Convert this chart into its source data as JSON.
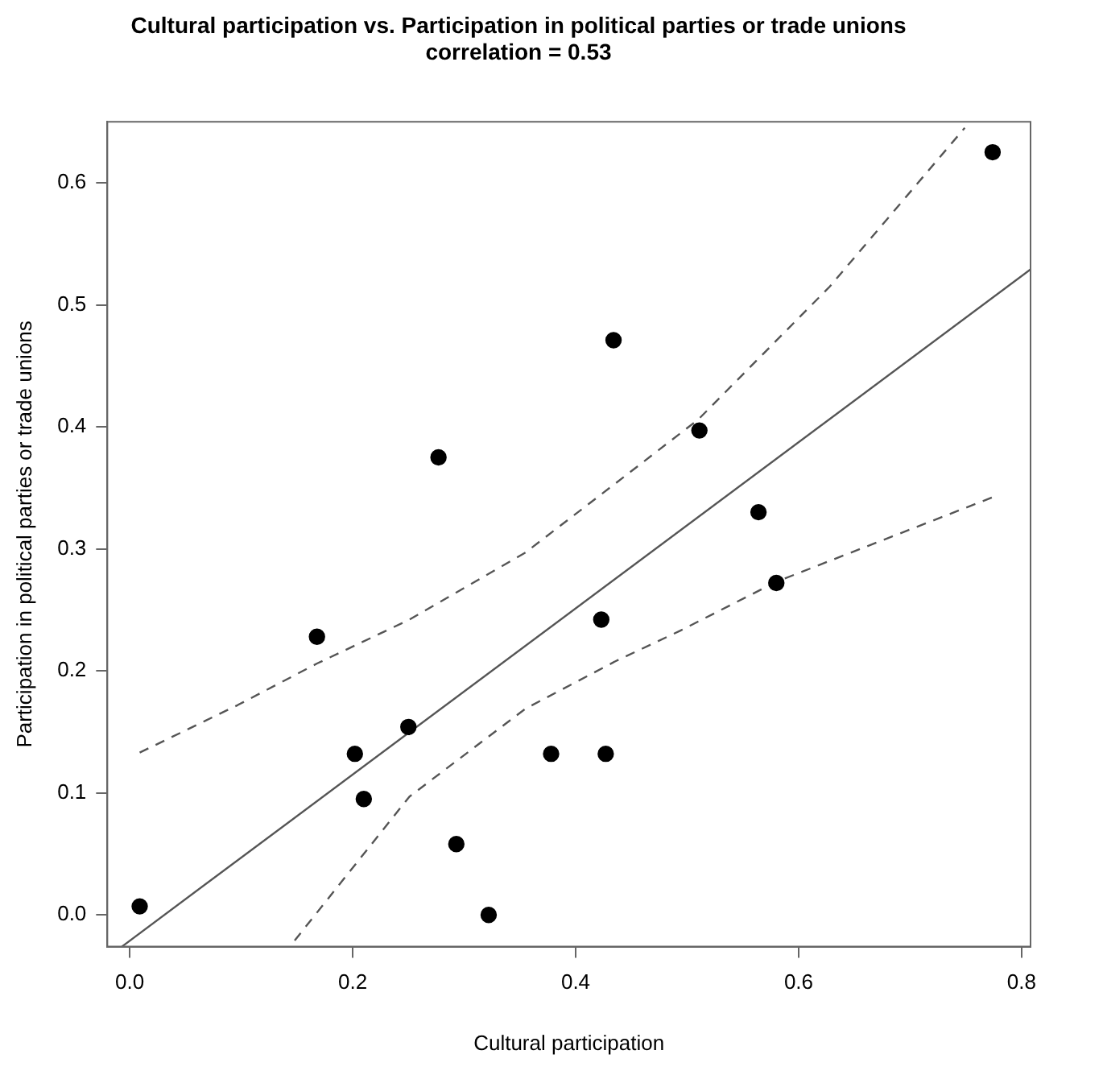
{
  "chart_data": {
    "type": "scatter",
    "title": "Cultural participation vs. Participation in political parties or trade unions",
    "subtitle": "correlation = 0.53",
    "xlabel": "Cultural participation",
    "ylabel": "Participation in political parties or trade unions",
    "xlim": [
      -0.02,
      0.808
    ],
    "ylim": [
      -0.026,
      0.65
    ],
    "xticks": [
      {
        "value": 0,
        "label": "0.0"
      },
      0.2,
      0.4,
      0.6,
      0.8
    ],
    "yticks": [
      {
        "value": 0,
        "label": "0.0"
      },
      0.1,
      0.2,
      0.3,
      0.4,
      0.5,
      0.6
    ],
    "grid": false,
    "legend": false,
    "marker": "circle",
    "series": [
      {
        "color": "#000000",
        "x": [
          0.009,
          0.168,
          0.202,
          0.21,
          0.25,
          0.277,
          0.293,
          0.322,
          0.378,
          0.427,
          0.423,
          0.434,
          0.511,
          0.564,
          0.58,
          0.774
        ],
        "values": [
          0.007,
          0.228,
          0.132,
          0.095,
          0.154,
          0.375,
          0.058,
          0.0,
          0.132,
          0.132,
          0.242,
          0.471,
          0.397,
          0.33,
          0.272,
          0.625
        ]
      },
      {
        "type": "line",
        "color": "#555555",
        "marker": "none",
        "line_style": "solid",
        "x": [
          -0.007,
          0.808
        ],
        "values": [
          -0.026,
          0.529
        ]
      },
      {
        "type": "line",
        "color": "#555555",
        "marker": "none",
        "line_style": "dashed",
        "x": [
          0.009,
          0.097,
          0.168,
          0.251,
          0.355,
          0.432,
          0.51,
          0.628,
          0.749
        ],
        "values": [
          0.133,
          0.172,
          0.206,
          0.242,
          0.297,
          0.351,
          0.406,
          0.515,
          0.645
        ]
      },
      {
        "type": "line",
        "color": "#555555",
        "marker": "none",
        "line_style": "dashed",
        "x": [
          0.148,
          0.251,
          0.355,
          0.436,
          0.494,
          0.58,
          0.776
        ],
        "values": [
          -0.021,
          0.097,
          0.169,
          0.208,
          0.233,
          0.273,
          0.343
        ]
      }
    ]
  }
}
